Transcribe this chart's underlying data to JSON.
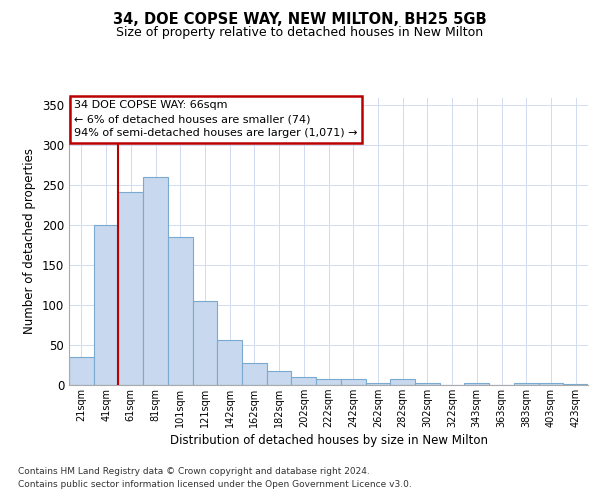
{
  "title1": "34, DOE COPSE WAY, NEW MILTON, BH25 5GB",
  "title2": "Size of property relative to detached houses in New Milton",
  "xlabel": "Distribution of detached houses by size in New Milton",
  "ylabel": "Number of detached properties",
  "bar_labels": [
    "21sqm",
    "41sqm",
    "61sqm",
    "81sqm",
    "101sqm",
    "121sqm",
    "142sqm",
    "162sqm",
    "182sqm",
    "202sqm",
    "222sqm",
    "242sqm",
    "262sqm",
    "282sqm",
    "302sqm",
    "322sqm",
    "343sqm",
    "363sqm",
    "383sqm",
    "403sqm",
    "423sqm"
  ],
  "bar_values": [
    35,
    200,
    242,
    260,
    185,
    105,
    56,
    27,
    17,
    10,
    8,
    8,
    3,
    7,
    2,
    0,
    2,
    0,
    2,
    2,
    1
  ],
  "bar_color": "#C8D8EE",
  "bar_edgecolor": "#7AAAD0",
  "vline_color": "#BB0000",
  "annotation_text": "34 DOE COPSE WAY: 66sqm\n← 6% of detached houses are smaller (74)\n94% of semi-detached houses are larger (1,071) →",
  "annotation_box_edgecolor": "#BB0000",
  "ylim": [
    0,
    360
  ],
  "yticks": [
    0,
    50,
    100,
    150,
    200,
    250,
    300,
    350
  ],
  "grid_color": "#D0DBF0",
  "background_color": "#FFFFFF",
  "footer1": "Contains HM Land Registry data © Crown copyright and database right 2024.",
  "footer2": "Contains public sector information licensed under the Open Government Licence v3.0."
}
